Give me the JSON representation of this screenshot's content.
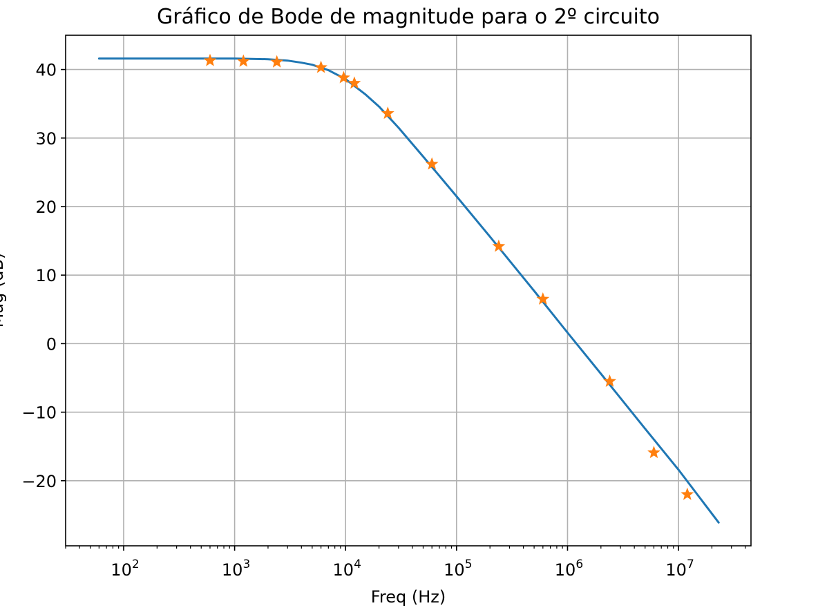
{
  "chart_data": {
    "type": "line",
    "title": "Gráfico de Bode de magnitude para o 2º circuito",
    "xlabel": "Freq (Hz)",
    "ylabel": "Mag (dB)",
    "x_scale": "log",
    "xlim": [
      30,
      45000000
    ],
    "ylim": [
      -29.5,
      45
    ],
    "grid": true,
    "x_ticks": [
      {
        "base": "10",
        "exp": "2",
        "value": 100
      },
      {
        "base": "10",
        "exp": "3",
        "value": 1000
      },
      {
        "base": "10",
        "exp": "4",
        "value": 10000
      },
      {
        "base": "10",
        "exp": "5",
        "value": 100000
      },
      {
        "base": "10",
        "exp": "6",
        "value": 1000000
      },
      {
        "base": "10",
        "exp": "7",
        "value": 10000000
      }
    ],
    "y_ticks": [
      {
        "label": "40",
        "value": 40
      },
      {
        "label": "30",
        "value": 30
      },
      {
        "label": "20",
        "value": 20
      },
      {
        "label": "10",
        "value": 10
      },
      {
        "label": "0",
        "value": 0
      },
      {
        "label": "−10",
        "value": -10
      },
      {
        "label": "−20",
        "value": -20
      }
    ],
    "series": [
      {
        "kind": "line",
        "color": "#1f77b4",
        "x": [
          60,
          200,
          500,
          1000,
          2000,
          3000,
          4000,
          5000,
          7000,
          10000,
          15000,
          20000,
          30000,
          50000,
          100000,
          200000,
          500000,
          1000000,
          2000000,
          5000000,
          10000000,
          23000000
        ],
        "y": [
          41.6,
          41.6,
          41.6,
          41.6,
          41.5,
          41.3,
          41.0,
          40.7,
          39.9,
          38.6,
          36.4,
          34.6,
          31.5,
          27.3,
          21.5,
          15.6,
          7.7,
          1.6,
          -4.4,
          -12.4,
          -18.4,
          -26.1
        ]
      },
      {
        "kind": "marker",
        "marker": "star",
        "color": "#ff7f0e",
        "x": [
          600,
          1200,
          2400,
          6000,
          9600,
          12000,
          24000,
          60000,
          240000,
          600000,
          2400000,
          6000000,
          12000000
        ],
        "y": [
          41.3,
          41.2,
          41.1,
          40.3,
          38.8,
          38.0,
          33.6,
          26.2,
          14.2,
          6.5,
          -5.5,
          -15.9,
          -22.0
        ]
      }
    ]
  }
}
